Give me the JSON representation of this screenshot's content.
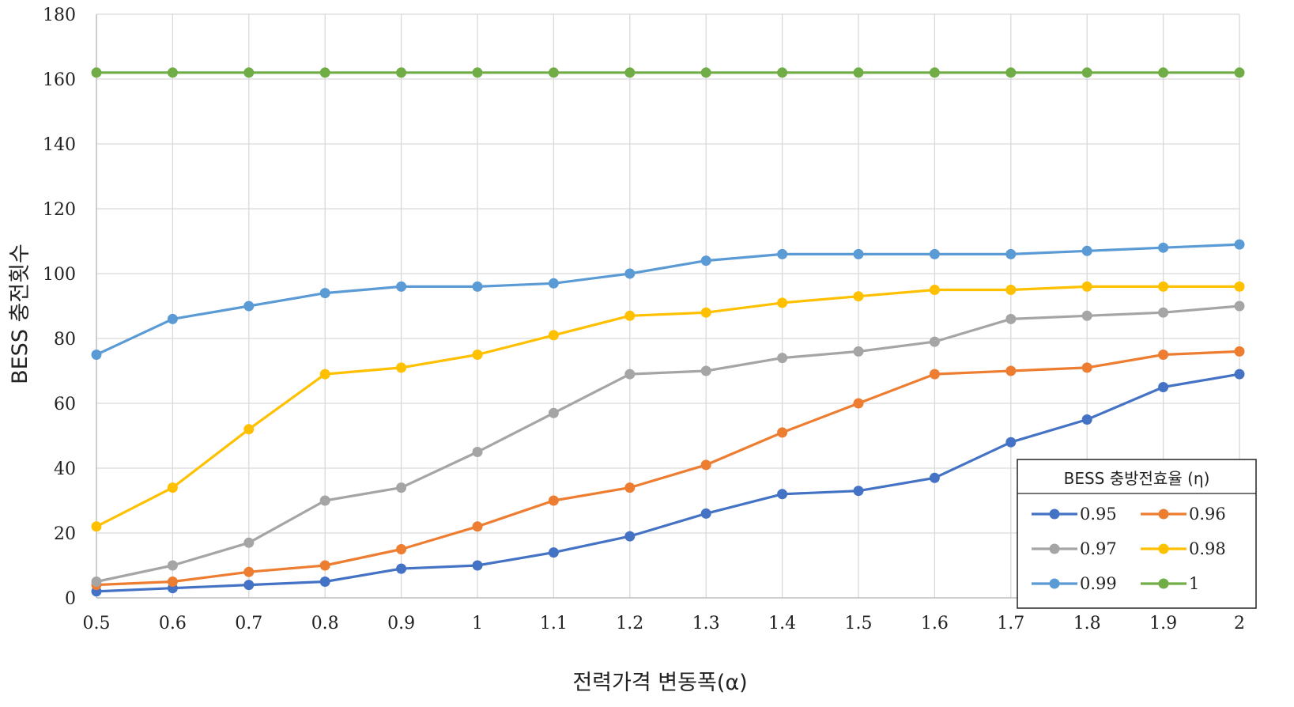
{
  "chart_data": {
    "type": "line",
    "title": "",
    "xlabel": "전력가격 변동폭(α)",
    "ylabel": "BESS 충전횟수",
    "x": [
      0.5,
      0.6,
      0.7,
      0.8,
      0.9,
      1,
      1.1,
      1.2,
      1.3,
      1.4,
      1.5,
      1.6,
      1.7,
      1.8,
      1.9,
      2
    ],
    "x_tick_labels": [
      "0.5",
      "0.6",
      "0.7",
      "0.8",
      "0.9",
      "1",
      "1.1",
      "1.2",
      "1.3",
      "1.4",
      "1.5",
      "1.6",
      "1.7",
      "1.8",
      "1.9",
      "2"
    ],
    "ylim": [
      0,
      180
    ],
    "y_ticks": [
      0,
      20,
      40,
      60,
      80,
      100,
      120,
      140,
      160,
      180
    ],
    "grid": true,
    "legend": {
      "title": "BESS 충방전효율 (η)",
      "placement": "bottom-right"
    },
    "series": [
      {
        "name": "0.95",
        "color": "#4472C4",
        "values": [
          2,
          3,
          4,
          5,
          9,
          10,
          14,
          19,
          26,
          32,
          33,
          37,
          48,
          55,
          65,
          69
        ]
      },
      {
        "name": "0.96",
        "color": "#ED7D31",
        "values": [
          4,
          5,
          8,
          10,
          15,
          22,
          30,
          34,
          41,
          51,
          60,
          69,
          70,
          71,
          75,
          76
        ]
      },
      {
        "name": "0.97",
        "color": "#A5A5A5",
        "values": [
          5,
          10,
          17,
          30,
          34,
          45,
          57,
          69,
          70,
          74,
          76,
          79,
          86,
          87,
          88,
          90
        ]
      },
      {
        "name": "0.98",
        "color": "#FFC000",
        "values": [
          22,
          34,
          52,
          69,
          71,
          75,
          81,
          87,
          88,
          91,
          93,
          95,
          95,
          96,
          96,
          96
        ]
      },
      {
        "name": "0.99",
        "color": "#5B9BD5",
        "values": [
          75,
          86,
          90,
          94,
          96,
          96,
          97,
          100,
          104,
          106,
          106,
          106,
          106,
          107,
          108,
          109
        ]
      },
      {
        "name": "1",
        "color": "#70AD47",
        "values": [
          162,
          162,
          162,
          162,
          162,
          162,
          162,
          162,
          162,
          162,
          162,
          162,
          162,
          162,
          162,
          162
        ]
      }
    ]
  }
}
